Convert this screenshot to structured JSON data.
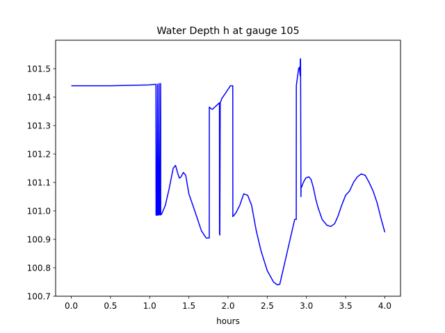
{
  "chart_data": {
    "type": "line",
    "title": "Water Depth h at gauge 105",
    "xlabel": "hours",
    "ylabel": "",
    "xlim": [
      -0.2,
      4.2
    ],
    "ylim": [
      100.7,
      101.6
    ],
    "xticks": [
      0.0,
      0.5,
      1.0,
      1.5,
      2.0,
      2.5,
      3.0,
      3.5,
      4.0
    ],
    "xtick_labels": [
      "0.0",
      "0.5",
      "1.0",
      "1.5",
      "2.0",
      "2.5",
      "3.0",
      "3.5",
      "4.0"
    ],
    "yticks": [
      100.7,
      100.8,
      100.9,
      101.0,
      101.1,
      101.2,
      101.3,
      101.4,
      101.5
    ],
    "ytick_labels": [
      "100.7",
      "100.8",
      "100.9",
      "101.0",
      "101.1",
      "101.2",
      "101.3",
      "101.4",
      "101.5"
    ],
    "grid": false,
    "legend": "none",
    "series": [
      {
        "color": "#0000ff",
        "x": [
          0.0,
          0.5,
          1.0,
          1.07,
          1.08,
          1.081,
          1.09,
          1.1,
          1.101,
          1.11,
          1.12,
          1.121,
          1.13,
          1.14,
          1.141,
          1.15,
          1.17,
          1.2,
          1.25,
          1.3,
          1.33,
          1.36,
          1.38,
          1.4,
          1.43,
          1.46,
          1.5,
          1.55,
          1.6,
          1.66,
          1.72,
          1.76,
          1.761,
          1.78,
          1.8,
          1.85,
          1.89,
          1.891,
          1.895,
          1.9,
          1.901,
          1.92,
          1.97,
          2.03,
          2.05,
          2.06,
          2.061,
          2.07,
          2.1,
          2.15,
          2.2,
          2.25,
          2.3,
          2.36,
          2.42,
          2.5,
          2.58,
          2.63,
          2.66,
          2.7,
          2.75,
          2.8,
          2.85,
          2.87,
          2.871,
          2.9,
          2.91,
          2.92,
          2.921,
          2.925,
          2.93,
          2.931,
          2.94,
          2.96,
          2.99,
          3.03,
          3.06,
          3.09,
          3.12,
          3.15,
          3.2,
          3.26,
          3.31,
          3.36,
          3.4,
          3.45,
          3.5,
          3.55,
          3.6,
          3.65,
          3.7,
          3.75,
          3.8,
          3.85,
          3.9,
          3.95,
          4.0
        ],
        "y": [
          101.44,
          101.44,
          101.443,
          101.445,
          101.445,
          100.985,
          100.985,
          101.445,
          100.985,
          100.985,
          101.448,
          100.987,
          100.986,
          101.448,
          100.986,
          100.988,
          101.0,
          101.02,
          101.08,
          101.15,
          101.16,
          101.13,
          101.115,
          101.12,
          101.135,
          101.125,
          101.06,
          101.02,
          100.98,
          100.93,
          100.905,
          100.905,
          101.365,
          101.36,
          101.357,
          101.37,
          101.38,
          100.92,
          100.915,
          101.38,
          101.38,
          101.395,
          101.415,
          101.44,
          101.44,
          101.44,
          100.98,
          100.983,
          100.993,
          101.02,
          101.06,
          101.055,
          101.02,
          100.93,
          100.86,
          100.79,
          100.75,
          100.74,
          100.742,
          100.79,
          100.85,
          100.91,
          100.97,
          100.97,
          101.44,
          101.5,
          101.505,
          101.475,
          101.53,
          101.535,
          101.05,
          101.08,
          101.085,
          101.1,
          101.115,
          101.12,
          101.11,
          101.08,
          101.04,
          101.01,
          100.97,
          100.95,
          100.945,
          100.955,
          100.98,
          101.02,
          101.055,
          101.07,
          101.1,
          101.12,
          101.13,
          101.125,
          101.1,
          101.07,
          101.03,
          100.975,
          100.925
        ]
      }
    ]
  }
}
